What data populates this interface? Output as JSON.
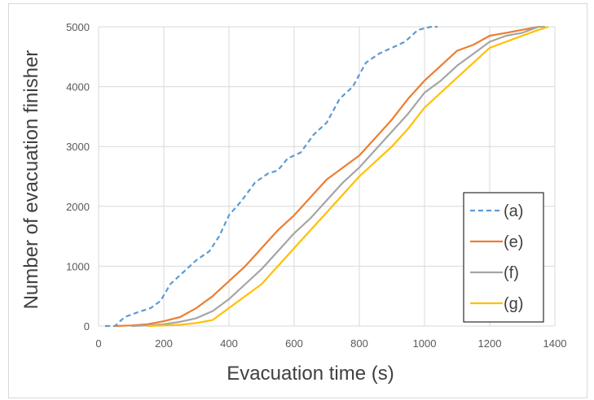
{
  "chart_data": {
    "type": "line",
    "xlabel": "Evacuation time (s)",
    "ylabel": "Number of evacuation finisher",
    "xlim": [
      0,
      1400
    ],
    "ylim": [
      0,
      5000
    ],
    "x_ticks": [
      "0",
      "200",
      "400",
      "600",
      "800",
      "1000",
      "1200",
      "1400"
    ],
    "y_ticks": [
      "0",
      "1000",
      "2000",
      "3000",
      "4000",
      "5000"
    ],
    "grid": "vertical and horizontal",
    "legend_position": "bottom-right",
    "series": [
      {
        "name": "(a)",
        "color": "#5B9BD5",
        "dash": "dashed",
        "points": [
          [
            20,
            0
          ],
          [
            50,
            0
          ],
          [
            80,
            150
          ],
          [
            120,
            230
          ],
          [
            160,
            300
          ],
          [
            190,
            420
          ],
          [
            220,
            700
          ],
          [
            260,
            900
          ],
          [
            300,
            1100
          ],
          [
            340,
            1250
          ],
          [
            370,
            1500
          ],
          [
            400,
            1850
          ],
          [
            440,
            2100
          ],
          [
            480,
            2400
          ],
          [
            520,
            2550
          ],
          [
            550,
            2600
          ],
          [
            580,
            2800
          ],
          [
            620,
            2900
          ],
          [
            660,
            3200
          ],
          [
            700,
            3400
          ],
          [
            740,
            3800
          ],
          [
            780,
            4000
          ],
          [
            820,
            4400
          ],
          [
            860,
            4550
          ],
          [
            900,
            4650
          ],
          [
            940,
            4750
          ],
          [
            980,
            4950
          ],
          [
            1020,
            5000
          ],
          [
            1040,
            5000
          ]
        ]
      },
      {
        "name": "(e)",
        "color": "#ED7D31",
        "dash": "solid",
        "points": [
          [
            50,
            0
          ],
          [
            100,
            10
          ],
          [
            150,
            30
          ],
          [
            200,
            80
          ],
          [
            250,
            150
          ],
          [
            300,
            300
          ],
          [
            350,
            500
          ],
          [
            400,
            750
          ],
          [
            450,
            1000
          ],
          [
            500,
            1300
          ],
          [
            550,
            1600
          ],
          [
            600,
            1850
          ],
          [
            650,
            2150
          ],
          [
            700,
            2450
          ],
          [
            750,
            2650
          ],
          [
            800,
            2850
          ],
          [
            850,
            3150
          ],
          [
            900,
            3450
          ],
          [
            950,
            3800
          ],
          [
            1000,
            4100
          ],
          [
            1050,
            4350
          ],
          [
            1100,
            4600
          ],
          [
            1150,
            4700
          ],
          [
            1200,
            4850
          ],
          [
            1250,
            4900
          ],
          [
            1300,
            4950
          ],
          [
            1350,
            5000
          ]
        ]
      },
      {
        "name": "(f)",
        "color": "#A5A5A5",
        "dash": "solid",
        "points": [
          [
            100,
            0
          ],
          [
            150,
            10
          ],
          [
            200,
            30
          ],
          [
            250,
            70
          ],
          [
            300,
            130
          ],
          [
            350,
            250
          ],
          [
            400,
            450
          ],
          [
            450,
            700
          ],
          [
            500,
            950
          ],
          [
            550,
            1250
          ],
          [
            600,
            1550
          ],
          [
            650,
            1800
          ],
          [
            700,
            2100
          ],
          [
            750,
            2400
          ],
          [
            800,
            2650
          ],
          [
            850,
            2950
          ],
          [
            900,
            3250
          ],
          [
            950,
            3550
          ],
          [
            1000,
            3900
          ],
          [
            1050,
            4100
          ],
          [
            1100,
            4350
          ],
          [
            1150,
            4550
          ],
          [
            1200,
            4750
          ],
          [
            1250,
            4850
          ],
          [
            1300,
            4900
          ],
          [
            1350,
            5000
          ],
          [
            1370,
            5000
          ]
        ]
      },
      {
        "name": "(g)",
        "color": "#FFC000",
        "dash": "solid",
        "points": [
          [
            150,
            0
          ],
          [
            200,
            10
          ],
          [
            250,
            20
          ],
          [
            300,
            50
          ],
          [
            350,
            100
          ],
          [
            400,
            300
          ],
          [
            450,
            500
          ],
          [
            500,
            700
          ],
          [
            550,
            1000
          ],
          [
            600,
            1300
          ],
          [
            650,
            1600
          ],
          [
            700,
            1900
          ],
          [
            750,
            2200
          ],
          [
            800,
            2500
          ],
          [
            850,
            2750
          ],
          [
            900,
            3000
          ],
          [
            950,
            3300
          ],
          [
            1000,
            3650
          ],
          [
            1050,
            3900
          ],
          [
            1100,
            4150
          ],
          [
            1150,
            4400
          ],
          [
            1200,
            4650
          ],
          [
            1250,
            4750
          ],
          [
            1300,
            4850
          ],
          [
            1350,
            4950
          ],
          [
            1380,
            5000
          ]
        ]
      }
    ]
  }
}
